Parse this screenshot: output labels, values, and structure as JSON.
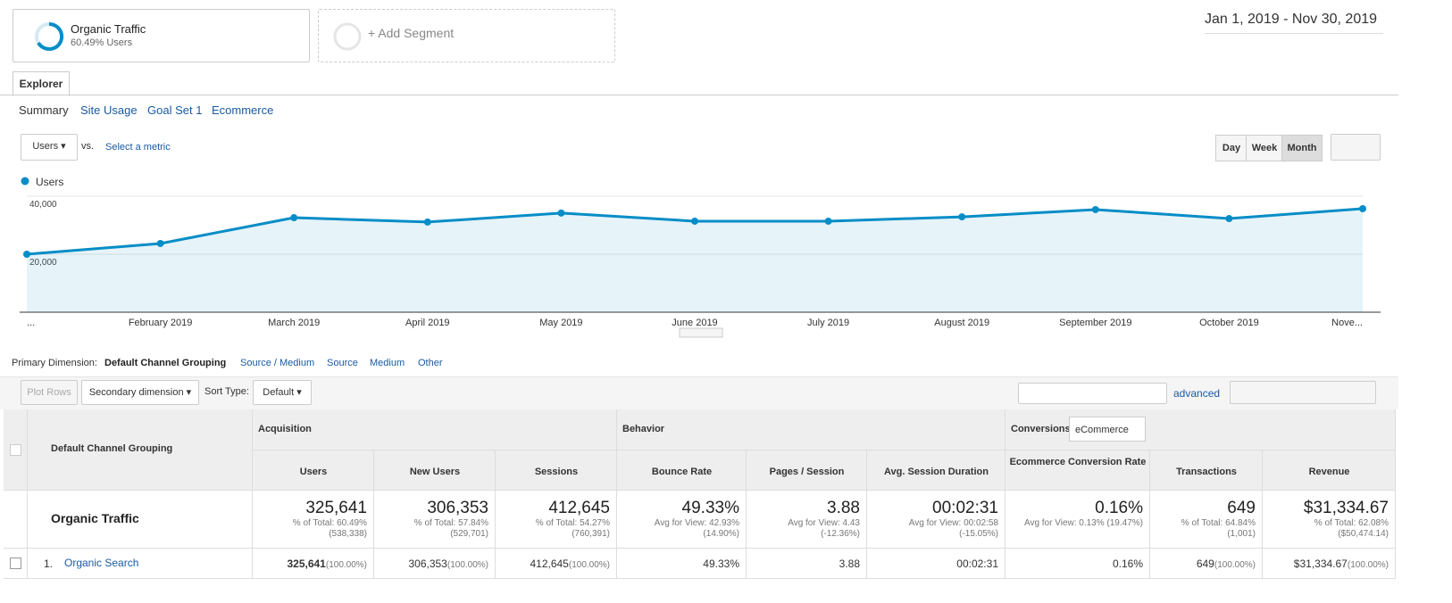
{
  "segment": {
    "name": "Organic Traffic",
    "detail": "60.49% Users"
  },
  "add_segment": "+ Add Segment",
  "date_range": "Jan 1, 2019 - Nov 30, 2019",
  "tab": "Explorer",
  "subtabs": [
    "Summary",
    "Site Usage",
    "Goal Set 1",
    "Ecommerce"
  ],
  "metric_select": "Users",
  "vs": "vs.",
  "select_metric": "Select a metric",
  "intervals": [
    "Day",
    "Week",
    "Month"
  ],
  "chart_data": {
    "type": "line",
    "categories": [
      "...",
      "February 2019",
      "March 2019",
      "April 2019",
      "May 2019",
      "June 2019",
      "July 2019",
      "August 2019",
      "September 2019",
      "October 2019",
      "Nove..."
    ],
    "series": [
      {
        "name": "Users",
        "color": "#058dc7",
        "values": [
          20000,
          23700,
          32600,
          31100,
          34200,
          31400,
          31400,
          32900,
          35400,
          32300,
          35700
        ]
      }
    ],
    "ylim": [
      0,
      40000
    ],
    "yticks": [
      {
        "value": 20000,
        "label": "20,000"
      },
      {
        "value": 40000,
        "label": "40,000"
      }
    ],
    "grid": true
  },
  "dimension_bar": {
    "label": "Primary Dimension:",
    "items": [
      "Default Channel Grouping",
      "Source / Medium",
      "Source",
      "Medium",
      "Other"
    ]
  },
  "toolbar": {
    "plot_rows": "Plot Rows",
    "secondary": "Secondary dimension",
    "sort_label": "Sort Type:",
    "sort": "Default",
    "advanced": "advanced"
  },
  "table": {
    "dimension_header": "Default Channel Grouping",
    "groups": [
      "Acquisition",
      "Behavior",
      "Conversions"
    ],
    "conversion_select": "eCommerce",
    "columns": [
      "Users",
      "New Users",
      "Sessions",
      "Bounce Rate",
      "Pages / Session",
      "Avg. Session Duration",
      "Ecommerce Conversion Rate",
      "Transactions",
      "Revenue"
    ],
    "totals": {
      "label": "Organic Traffic",
      "cells": [
        {
          "value": "325,641",
          "notes": [
            "% of Total: 60.49%",
            "(538,338)"
          ]
        },
        {
          "value": "306,353",
          "notes": [
            "% of Total: 57.84%",
            "(529,701)"
          ]
        },
        {
          "value": "412,645",
          "notes": [
            "% of Total: 54.27%",
            "(760,391)"
          ]
        },
        {
          "value": "49.33%",
          "notes": [
            "Avg for View: 42.93%",
            "(14.90%)"
          ]
        },
        {
          "value": "3.88",
          "notes": [
            "Avg for View: 4.43",
            "(-12.36%)"
          ]
        },
        {
          "value": "00:02:31",
          "notes": [
            "Avg for View: 00:02:58",
            "(-15.05%)"
          ]
        },
        {
          "value": "0.16%",
          "notes": [
            "Avg for View: 0.13% (19.47%)"
          ]
        },
        {
          "value": "649",
          "notes": [
            "% of Total: 64.84%",
            "(1,001)"
          ]
        },
        {
          "value": "$31,334.67",
          "notes": [
            "% of Total: 62.08%",
            "($50,474.14)"
          ]
        }
      ]
    },
    "rows": [
      {
        "index": "1.",
        "label": "Organic Search",
        "cells": [
          [
            "325,641",
            "(100.00%)"
          ],
          [
            "306,353",
            "(100.00%)"
          ],
          [
            "412,645",
            "(100.00%)"
          ],
          [
            "49.33%"
          ],
          [
            "3.88"
          ],
          [
            "00:02:31"
          ],
          [
            "0.16%"
          ],
          [
            "649",
            "(100.00%)"
          ],
          [
            "$31,334.67",
            "(100.00%)"
          ]
        ]
      }
    ]
  }
}
